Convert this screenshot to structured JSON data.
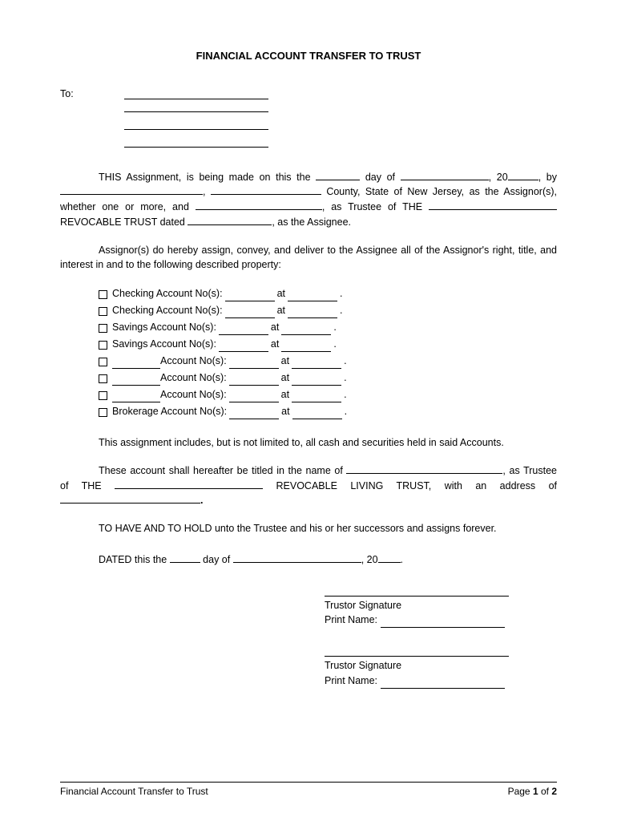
{
  "title": "FINANCIAL ACCOUNT TRANSFER TO TRUST",
  "to_label": "To:",
  "para1": {
    "pre": "THIS Assignment, is being made on this the ",
    "day_of": " day of ",
    "comma": ",",
    "year_prefix": "20",
    "by": ", by ",
    "county_state": " County, State of New Jersey, as the Assignor(s), whether one or more, and ",
    "trustee": ", as Trustee of THE ",
    "revocable": " REVOCABLE TRUST dated ",
    "as_the": ", as the Assignee."
  },
  "para2": "Assignor(s) do hereby assign, convey, and deliver to the Assignee all of the Assignor's right, title, and interest in and to the following described property:",
  "accounts": [
    {
      "type": "Checking Account No(s):",
      "has_type_blank": false
    },
    {
      "type": "Checking Account No(s):",
      "has_type_blank": false
    },
    {
      "type": "Savings Account No(s):",
      "has_type_blank": false
    },
    {
      "type": "Savings Account No(s):",
      "has_type_blank": false
    },
    {
      "type": " Account No(s):",
      "has_type_blank": true
    },
    {
      "type": " Account No(s):",
      "has_type_blank": true
    },
    {
      "type": " Account No(s):",
      "has_type_blank": true
    },
    {
      "type": "Brokerage Account No(s):",
      "has_type_blank": false
    }
  ],
  "at_label": " at ",
  "para3": "This assignment includes, but is not limited to, all cash and securities held in said Accounts.",
  "para4": {
    "p1": "These account shall hereafter be titled in the name of ",
    "p2": ", as Trustee of THE ",
    "p3": " REVOCABLE LIVING TRUST, with an address of ",
    "p4": "."
  },
  "para5": "TO HAVE AND TO HOLD unto the Trustee and his or her successors and assigns forever.",
  "dated": {
    "p1": "DATED this the ",
    "p2": " day of ",
    "p3": ", 20",
    "p4": "."
  },
  "sig": {
    "title": "Trustor Signature",
    "name": "Print Name:"
  },
  "footer": {
    "left": "Financial Account Transfer to Trust",
    "right_pre": "Page ",
    "page": "1",
    "of": " of ",
    "total": "2"
  }
}
